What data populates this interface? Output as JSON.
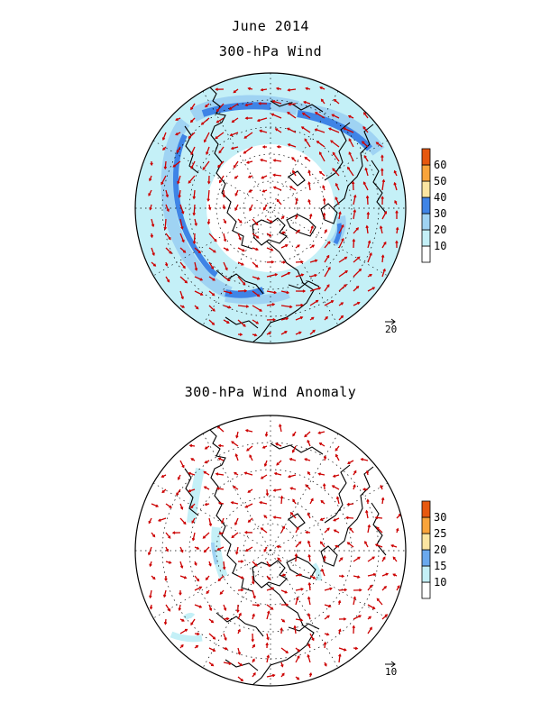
{
  "figure": {
    "title": "June 2014",
    "panels": [
      {
        "subtitle": "300-hPa Wind",
        "reference_vector": "20",
        "colorbar": {
          "levels": [
            "10",
            "20",
            "30",
            "40",
            "50",
            "60"
          ],
          "colors": [
            "#ffffff",
            "#c4f0f7",
            "#9fd3f3",
            "#3f84e6",
            "#fbe5a1",
            "#f9a43b",
            "#e6580f"
          ]
        }
      },
      {
        "subtitle": "300-hPa Wind Anomaly",
        "reference_vector": "10",
        "colorbar": {
          "levels": [
            "10",
            "15",
            "20",
            "25",
            "30"
          ],
          "colors": [
            "#ffffff",
            "#c4f0f7",
            "#6aa9ee",
            "#fbe5a1",
            "#f9a43b",
            "#e6580f"
          ]
        }
      }
    ],
    "colors": {
      "vector": "#cc0000",
      "coast": "#000000",
      "grid": "#000000"
    }
  }
}
